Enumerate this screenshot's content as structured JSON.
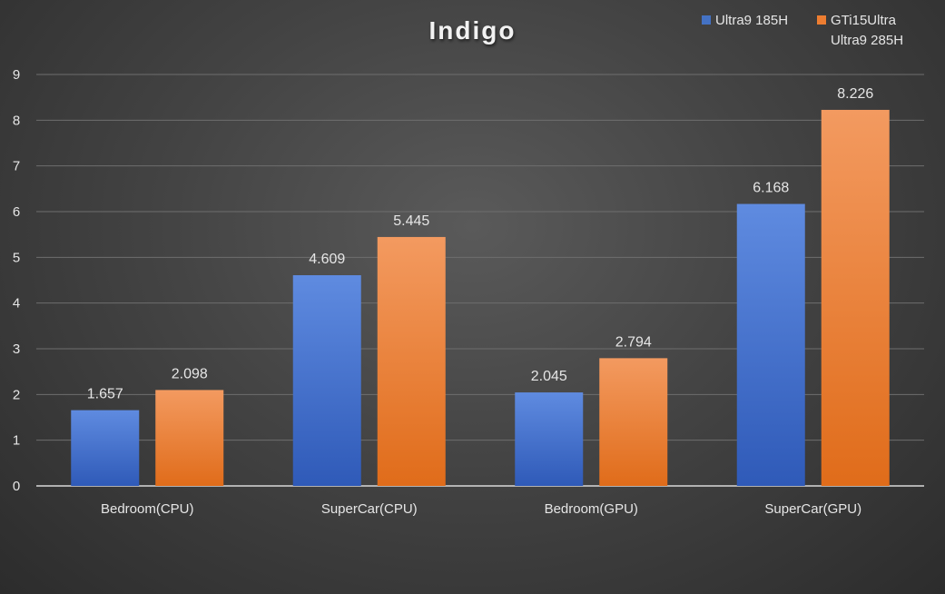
{
  "chart_data": {
    "type": "bar",
    "title": "Indigo",
    "categories": [
      "Bedroom(CPU)",
      "SuperCar(CPU)",
      "Bedroom(GPU)",
      "SuperCar(GPU)"
    ],
    "series": [
      {
        "name": "Ultra9 185H",
        "values": [
          1.657,
          4.609,
          2.045,
          6.168
        ],
        "color": "#4472c4"
      },
      {
        "name": "GTi15Ultra Ultra9 285H",
        "values": [
          2.098,
          5.445,
          2.794,
          8.226
        ],
        "color": "#ed7d31"
      }
    ],
    "data_labels": [
      [
        "1.657",
        "4.609",
        "2.045",
        "6.168"
      ],
      [
        "2.098",
        "5.445",
        "2.794",
        "8.226"
      ]
    ],
    "y_ticks": [
      "0",
      "1",
      "2",
      "3",
      "4",
      "5",
      "6",
      "7",
      "8",
      "9"
    ],
    "ylim": [
      0,
      9
    ],
    "grid": true,
    "legend_position": "top-right"
  }
}
